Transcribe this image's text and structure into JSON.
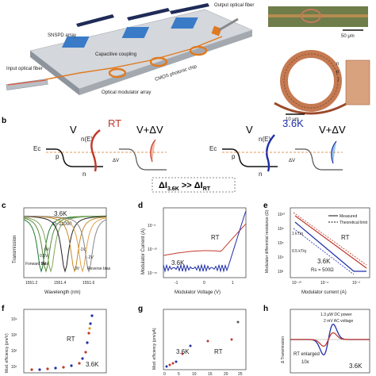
{
  "panel_a": {
    "letter": "",
    "labels": {
      "snspd": "SNSPD\narray",
      "capacitive": "Capacitive\ncoupling",
      "input_fiber": "Input optical\nfiber",
      "output_fiber": "Output optical\nfiber",
      "modulator_array": "Optical\nmodulator array",
      "chip": "CMOS photonic chip",
      "scale1": "50 μm",
      "scale2": "10 μm",
      "n": "n",
      "p": "p",
      "i": "i"
    }
  },
  "panel_b": {
    "letter": "b",
    "rt": {
      "title": "RT",
      "v": "V",
      "vdv": "V+ΔV",
      "ne": "n(E)",
      "ec": "Ec",
      "p": "p",
      "n": "n",
      "dv": "ΔV"
    },
    "cold": {
      "title": "3.6K",
      "v": "V",
      "vdv": "V+ΔV",
      "ne": "n(E)",
      "ec": "Ec",
      "p": "p",
      "n": "n",
      "dv": "ΔV"
    },
    "relation": "ΔI3.6K >> ΔIRT",
    "relation_main": "ΔI",
    "relation_sub1": "3.6K",
    "relation_mid": " >> ΔI",
    "relation_sub2": "RT"
  },
  "panel_c": {
    "letter": "c",
    "title": "3.6K",
    "q": "Q~11000",
    "ylabel": "Transmission",
    "xlabel": "Wavelength (nm)",
    "xticks": [
      "1551.2",
      "1551.4",
      "1551.6"
    ],
    "curve_labels": [
      "0V",
      "0.5V",
      "1V",
      "-1V",
      "-2V",
      "3V"
    ],
    "forward_bias": "Forward\nbias",
    "reverse_bias": "Reverse\nbias"
  },
  "panel_d": {
    "letter": "d",
    "ylabel": "Modulator Current (A)",
    "xlabel": "Modulator Voltage (V)",
    "xticks": [
      "-1",
      "0",
      "1"
    ],
    "yticks": [
      "10⁻⁵",
      "10⁻¹⁰",
      "10⁻¹⁵"
    ],
    "series": [
      {
        "name": "RT",
        "color": "#c0392b"
      },
      {
        "name": "3.6K",
        "color": "#1f2fa8"
      }
    ]
  },
  "panel_e": {
    "letter": "e",
    "ylabel": "Modulator differential\nresistance (Ω)",
    "xlabel": "Modulator current (A)",
    "xticks": [
      "10⁻¹⁰",
      "10⁻⁶",
      "10⁻²"
    ],
    "yticks": [
      "10¹⁰",
      "10⁸",
      "10⁶",
      "10⁴",
      "10²"
    ],
    "legend": [
      "Measured",
      "Theoretical limit"
    ],
    "series": [
      {
        "name": "RT",
        "color": "#c0392b"
      },
      {
        "name": "3.6K",
        "color": "#1f2fa8"
      }
    ],
    "rs": "Rs = 500Ω",
    "slope_labels": [
      "1 kT/q",
      "0.5 kT/q"
    ]
  },
  "panel_f": {
    "letter": "f",
    "ylabel": "Mod. efficiency (pm/V)",
    "yticks": [
      "10⁴",
      "10³",
      "10²",
      "10¹"
    ],
    "series": [
      {
        "name": "RT",
        "color": "#c0392b"
      },
      {
        "name": "3.6K",
        "color": "#1f2fa8"
      }
    ]
  },
  "panel_g": {
    "letter": "g",
    "ylabel": "Mod. efficiency (pm/μA)",
    "xticks": [
      "0",
      "5",
      "10",
      "15",
      "20",
      "25"
    ],
    "series": [
      {
        "name": "RT",
        "color": "#c0392b"
      },
      {
        "name": "3.6K",
        "color": "#1f2fa8"
      }
    ]
  },
  "panel_h": {
    "letter": "h",
    "ylabel": "Δ Transmission",
    "annot1": "1.3 μW DC power",
    "annot2": "2 mV AC voltage",
    "rt_enlarged": "RT enlarged",
    "factor": "10x",
    "cold": "3.6K"
  },
  "colors": {
    "rt": "#c0392b",
    "cold": "#1f2fa8",
    "orange": "#e07a1f",
    "chip": "#c9cdd3"
  }
}
